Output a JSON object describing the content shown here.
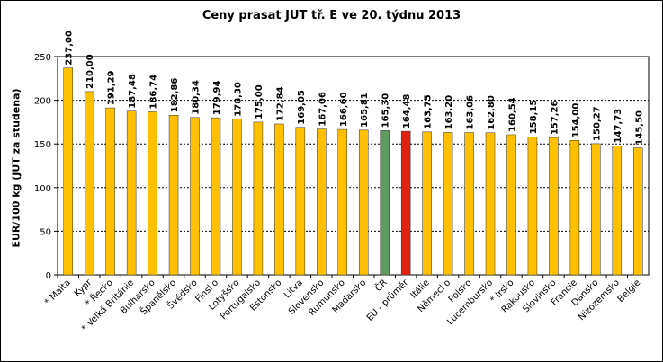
{
  "chart_data": {
    "type": "bar",
    "title": "Ceny prasat JUT  tř. E  ve 20. týdnu 2013",
    "ylabel": "EUR/100 kg (JUT za studena)",
    "xlabel": "",
    "ylim": [
      0,
      250
    ],
    "yticks": [
      "0",
      "50",
      "100",
      "150",
      "200",
      "250"
    ],
    "grid": true,
    "categories": [
      "* Malta",
      "Kypr",
      "* Řecko",
      "* Velká Británie",
      "Bulharsko",
      "Španělsko",
      "Švédsko",
      "Finsko",
      "Lotyšsko",
      "Portugalsko",
      "Estonsko",
      "Litva",
      "Slovensko",
      "Rumunsko",
      "Maďarsko",
      "ČR",
      "EU - průměr",
      "Itálie",
      "Německo",
      "Polsko",
      "Lucembursko",
      "* Irsko",
      "Rakousko",
      "Slovinsko",
      "Francie",
      "Dánsko",
      "Nizozemsko",
      "Belgie"
    ],
    "values": [
      237.0,
      210.0,
      191.29,
      187.48,
      186.74,
      182.86,
      180.34,
      179.94,
      178.3,
      175.0,
      172.84,
      169.05,
      167.06,
      166.6,
      165.81,
      165.3,
      164.48,
      163.75,
      163.2,
      163.06,
      162.8,
      160.54,
      158.15,
      157.26,
      154.0,
      150.27,
      147.73,
      145.5
    ],
    "value_labels": [
      "237,00",
      "210,00",
      "191,29",
      "187,48",
      "186,74",
      "182,86",
      "180,34",
      "179,94",
      "178,30",
      "175,00",
      "172,84",
      "169,05",
      "167,06",
      "166,60",
      "165,81",
      "165,30",
      "164,48",
      "163,75",
      "163,20",
      "163,06",
      "162,80",
      "160,54",
      "158,15",
      "157,26",
      "154,00",
      "150,27",
      "147,73",
      "145,50"
    ],
    "colors": {
      "default": "#FFC000",
      "highlight_cr": "#5E9B5E",
      "highlight_eu": "#E02010",
      "bar_outline": "#333333"
    },
    "highlights": {
      "ČR": "highlight_cr",
      "EU - průměr": "highlight_eu"
    }
  }
}
